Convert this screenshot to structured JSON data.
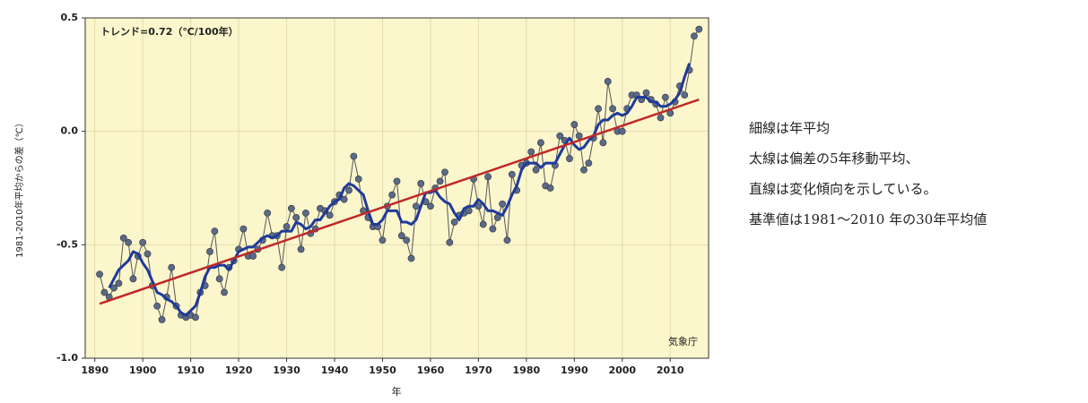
{
  "chart_data": {
    "type": "line",
    "annotations": [
      "トレンド=0.72（℃/100年）",
      "気象庁"
    ],
    "xlabel": "年",
    "ylabel": "1981-2010年平均からの差（℃）",
    "x": [
      1891,
      1892,
      1893,
      1894,
      1895,
      1896,
      1897,
      1898,
      1899,
      1900,
      1901,
      1902,
      1903,
      1904,
      1905,
      1906,
      1907,
      1908,
      1909,
      1910,
      1911,
      1912,
      1913,
      1914,
      1915,
      1916,
      1917,
      1918,
      1919,
      1920,
      1921,
      1922,
      1923,
      1924,
      1925,
      1926,
      1927,
      1928,
      1929,
      1930,
      1931,
      1932,
      1933,
      1934,
      1935,
      1936,
      1937,
      1938,
      1939,
      1940,
      1941,
      1942,
      1943,
      1944,
      1945,
      1946,
      1947,
      1948,
      1949,
      1950,
      1951,
      1952,
      1953,
      1954,
      1955,
      1956,
      1957,
      1958,
      1959,
      1960,
      1961,
      1962,
      1963,
      1964,
      1965,
      1966,
      1967,
      1968,
      1969,
      1970,
      1971,
      1972,
      1973,
      1974,
      1975,
      1976,
      1977,
      1978,
      1979,
      1980,
      1981,
      1982,
      1983,
      1984,
      1985,
      1986,
      1987,
      1988,
      1989,
      1990,
      1991,
      1992,
      1993,
      1994,
      1995,
      1996,
      1997,
      1998,
      1999,
      2000,
      2001,
      2002,
      2003,
      2004,
      2005,
      2006,
      2007,
      2008,
      2009,
      2010,
      2011,
      2012,
      2013,
      2014,
      2015,
      2016
    ],
    "series": [
      {
        "color": "#555555",
        "marker_color": "#5a6a88",
        "markers": true,
        "width": 1,
        "values": [
          -0.63,
          -0.71,
          -0.73,
          -0.69,
          -0.67,
          -0.47,
          -0.49,
          -0.65,
          -0.55,
          -0.49,
          -0.54,
          -0.68,
          -0.77,
          -0.83,
          -0.73,
          -0.6,
          -0.77,
          -0.81,
          -0.82,
          -0.81,
          -0.82,
          -0.71,
          -0.68,
          -0.53,
          -0.44,
          -0.65,
          -0.71,
          -0.6,
          -0.57,
          -0.52,
          -0.43,
          -0.55,
          -0.55,
          -0.52,
          -0.48,
          -0.36,
          -0.46,
          -0.46,
          -0.6,
          -0.42,
          -0.34,
          -0.38,
          -0.52,
          -0.36,
          -0.45,
          -0.43,
          -0.34,
          -0.35,
          -0.37,
          -0.31,
          -0.28,
          -0.3,
          -0.26,
          -0.11,
          -0.21,
          -0.35,
          -0.38,
          -0.42,
          -0.42,
          -0.48,
          -0.33,
          -0.28,
          -0.22,
          -0.46,
          -0.48,
          -0.56,
          -0.33,
          -0.23,
          -0.31,
          -0.33,
          -0.25,
          -0.22,
          -0.18,
          -0.49,
          -0.4,
          -0.37,
          -0.36,
          -0.35,
          -0.21,
          -0.33,
          -0.41,
          -0.2,
          -0.43,
          -0.38,
          -0.32,
          -0.48,
          -0.19,
          -0.26,
          -0.15,
          -0.14,
          -0.09,
          -0.17,
          -0.05,
          -0.24,
          -0.25,
          -0.15,
          -0.02,
          -0.04,
          -0.12,
          0.03,
          -0.02,
          -0.17,
          -0.14,
          -0.03,
          0.1,
          -0.05,
          0.22,
          0.1,
          0.0,
          0.0,
          0.1,
          0.16,
          0.16,
          0.14,
          0.17,
          0.14,
          0.12,
          0.06,
          0.15,
          0.08,
          0.13,
          0.2,
          0.16,
          0.27,
          0.42,
          0.45
        ]
      },
      {
        "color": "#1f3a9a",
        "markers": false,
        "width": 3,
        "values": [
          null,
          null,
          -0.69,
          -0.65,
          -0.61,
          -0.59,
          -0.57,
          -0.53,
          -0.54,
          -0.58,
          -0.61,
          -0.66,
          -0.71,
          -0.72,
          -0.74,
          -0.75,
          -0.77,
          -0.8,
          -0.81,
          -0.79,
          -0.77,
          -0.71,
          -0.64,
          -0.6,
          -0.6,
          -0.59,
          -0.59,
          -0.61,
          -0.57,
          -0.53,
          -0.52,
          -0.51,
          -0.51,
          -0.49,
          -0.47,
          -0.46,
          -0.47,
          -0.46,
          -0.44,
          -0.44,
          -0.44,
          -0.4,
          -0.41,
          -0.43,
          -0.42,
          -0.39,
          -0.39,
          -0.36,
          -0.33,
          -0.31,
          -0.3,
          -0.25,
          -0.23,
          -0.24,
          -0.26,
          -0.28,
          -0.35,
          -0.41,
          -0.41,
          -0.39,
          -0.35,
          -0.35,
          -0.35,
          -0.4,
          -0.4,
          -0.41,
          -0.39,
          -0.33,
          -0.27,
          -0.27,
          -0.26,
          -0.29,
          -0.31,
          -0.32,
          -0.36,
          -0.39,
          -0.34,
          -0.33,
          -0.33,
          -0.3,
          -0.32,
          -0.35,
          -0.35,
          -0.36,
          -0.37,
          -0.33,
          -0.28,
          -0.24,
          -0.17,
          -0.14,
          -0.14,
          -0.14,
          -0.16,
          -0.14,
          -0.14,
          -0.14,
          -0.1,
          -0.06,
          -0.03,
          -0.06,
          -0.08,
          -0.07,
          -0.04,
          -0.02,
          0.03,
          0.05,
          0.05,
          0.07,
          0.08,
          0.07,
          0.08,
          0.11,
          0.15,
          0.15,
          0.15,
          0.13,
          0.13,
          0.11,
          0.11,
          0.12,
          0.14,
          0.17,
          0.24,
          0.3,
          null,
          null
        ]
      },
      {
        "color": "#c0282a",
        "markers": false,
        "width": 2.5,
        "x": [
          1891,
          2016
        ],
        "values": [
          -0.76,
          0.14
        ]
      }
    ],
    "xlim": [
      1888,
      2018
    ],
    "xticks": [
      1890,
      1900,
      1910,
      1920,
      1930,
      1940,
      1950,
      1960,
      1970,
      1980,
      1990,
      2000,
      2010
    ],
    "ylim": [
      -1.0,
      0.5
    ],
    "yticks": [
      {
        "value": -1.0,
        "label": "-1.0"
      },
      -0.5,
      {
        "value": 0.0,
        "label": "0.0"
      },
      0.5
    ],
    "grid": true,
    "background": "#fbf6cc"
  },
  "notes": [
    "細線は年平均",
    "太線は偏差の5年移動平均、",
    "直線は変化傾向を示している。",
    "基準値は1981〜2010 年の30年平均値"
  ]
}
